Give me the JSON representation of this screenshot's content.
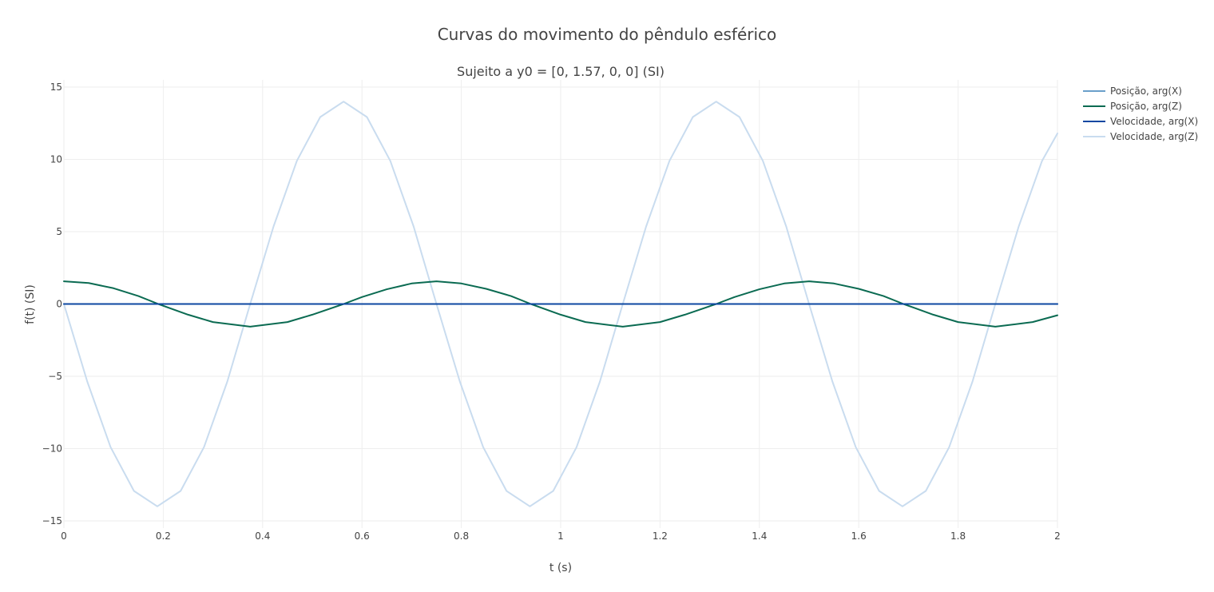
{
  "chart_data": {
    "type": "line",
    "title": "Curvas do movimento do pêndulo esférico",
    "subtitle": "Sujeito a y0 = [0, 1.57, 0, 0] (SI)",
    "xlabel": "t (s)",
    "ylabel": "f(t) (SI)",
    "xlim": [
      0,
      2
    ],
    "ylim": [
      -15.5,
      15.5
    ],
    "x_ticks": [
      0,
      0.2,
      0.4,
      0.6,
      0.8,
      1,
      1.2,
      1.4,
      1.6,
      1.8,
      2
    ],
    "x_tick_labels": [
      "0",
      "0.2",
      "0.4",
      "0.6",
      "0.8",
      "1",
      "1.2",
      "1.4",
      "1.6",
      "1.8",
      "2"
    ],
    "y_ticks": [
      -15,
      -10,
      -5,
      0,
      5,
      10,
      15
    ],
    "y_tick_labels": [
      "−15",
      "−10",
      "−5",
      "0",
      "5",
      "10",
      "15"
    ],
    "grid": true,
    "legend_position": "top-right",
    "series": [
      {
        "name": "Posição, arg(X)",
        "color": "#6a9fca",
        "x": [
          0,
          2
        ],
        "y": [
          0,
          0
        ]
      },
      {
        "name": "Posição, arg(Z)",
        "color": "#0b6b52",
        "x": [
          0,
          0.05,
          0.1,
          0.15,
          0.19,
          0.25,
          0.3,
          0.375,
          0.45,
          0.5,
          0.563,
          0.6,
          0.65,
          0.7,
          0.75,
          0.8,
          0.85,
          0.9,
          0.94,
          1.0,
          1.05,
          1.125,
          1.2,
          1.25,
          1.313,
          1.35,
          1.4,
          1.45,
          1.5,
          1.55,
          1.6,
          1.65,
          1.69,
          1.75,
          1.8,
          1.875,
          1.95,
          2.0
        ],
        "y": [
          1.57,
          1.45,
          1.09,
          0.55,
          0.0,
          -0.74,
          -1.25,
          -1.57,
          -1.25,
          -0.74,
          0.0,
          0.48,
          1.02,
          1.42,
          1.57,
          1.42,
          1.05,
          0.55,
          0.0,
          -0.74,
          -1.25,
          -1.57,
          -1.25,
          -0.74,
          0.0,
          0.48,
          1.02,
          1.42,
          1.57,
          1.42,
          1.05,
          0.55,
          0.0,
          -0.74,
          -1.25,
          -1.57,
          -1.25,
          -0.78
        ]
      },
      {
        "name": "Velocidade, arg(X)",
        "color": "#0c47a1",
        "x": [
          0,
          2
        ],
        "y": [
          0,
          0
        ]
      },
      {
        "name": "Velocidade, arg(Z)",
        "color": "#c9dcef",
        "x": [
          0,
          0.047,
          0.094,
          0.141,
          0.188,
          0.235,
          0.282,
          0.329,
          0.375,
          0.422,
          0.469,
          0.516,
          0.563,
          0.61,
          0.657,
          0.704,
          0.75,
          0.797,
          0.844,
          0.891,
          0.938,
          0.985,
          1.032,
          1.079,
          1.125,
          1.172,
          1.219,
          1.266,
          1.313,
          1.36,
          1.407,
          1.454,
          1.5,
          1.547,
          1.594,
          1.641,
          1.688,
          1.735,
          1.782,
          1.829,
          1.875,
          1.922,
          1.969,
          2.0
        ],
        "y": [
          0,
          -5.36,
          -9.9,
          -12.93,
          -14.0,
          -12.93,
          -9.9,
          -5.36,
          0,
          5.36,
          9.9,
          12.93,
          14.0,
          12.93,
          9.9,
          5.36,
          0,
          -5.36,
          -9.9,
          -12.93,
          -14.0,
          -12.93,
          -9.9,
          -5.36,
          0,
          5.36,
          9.9,
          12.93,
          14.0,
          12.93,
          9.9,
          5.36,
          0,
          -5.36,
          -9.9,
          -12.93,
          -14.0,
          -12.93,
          -9.9,
          -5.36,
          0,
          5.36,
          9.9,
          11.8
        ]
      }
    ]
  }
}
